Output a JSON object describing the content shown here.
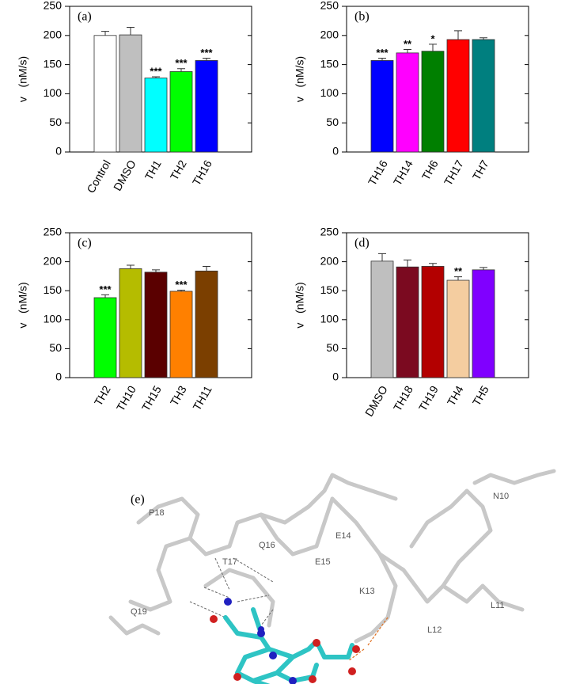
{
  "chart_data": [
    {
      "type": "bar",
      "title": "(a)",
      "ylabel": "v   (nM/s)",
      "categories": [
        "Control",
        "DMSO",
        "TH1",
        "TH2",
        "TH16"
      ],
      "values": [
        200,
        201,
        127,
        138,
        157
      ],
      "errors": [
        7,
        13,
        2,
        5,
        4
      ],
      "significance": [
        null,
        null,
        "***",
        "***",
        "***"
      ],
      "colors": [
        "#ffffff",
        "#bfbfbf",
        "#00ffff",
        "#00ff00",
        "#0000ff"
      ],
      "ylim": [
        0,
        250
      ],
      "yticks": [
        0,
        50,
        100,
        150,
        200,
        250
      ]
    },
    {
      "type": "bar",
      "title": "(b)",
      "ylabel": "v   (nM/s)",
      "categories": [
        "TH16",
        "TH14",
        "TH6",
        "TH17",
        "TH7"
      ],
      "values": [
        157,
        170,
        173,
        193,
        193
      ],
      "errors": [
        4,
        6,
        12,
        15,
        3
      ],
      "significance": [
        "***",
        "**",
        "*",
        null,
        null
      ],
      "colors": [
        "#0000ff",
        "#ff00ff",
        "#007f00",
        "#ff0000",
        "#007f7f"
      ],
      "ylim": [
        0,
        250
      ],
      "yticks": [
        0,
        50,
        100,
        150,
        200,
        250
      ]
    },
    {
      "type": "bar",
      "title": "(c)",
      "ylabel": "v   (nM/s)",
      "categories": [
        "TH2",
        "TH10",
        "TH15",
        "TH3",
        "TH11"
      ],
      "values": [
        138,
        188,
        182,
        149,
        184
      ],
      "errors": [
        5,
        6,
        4,
        2,
        8
      ],
      "significance": [
        "***",
        null,
        null,
        "***",
        null
      ],
      "colors": [
        "#00ff00",
        "#b5bc00",
        "#5a0000",
        "#ff8000",
        "#7b3f00"
      ],
      "ylim": [
        0,
        250
      ],
      "yticks": [
        0,
        50,
        100,
        150,
        200,
        250
      ]
    },
    {
      "type": "bar",
      "title": "(d)",
      "ylabel": "v   (nM/s)",
      "categories": [
        "DMSO",
        "TH18",
        "TH19",
        "TH4",
        "TH5"
      ],
      "values": [
        201,
        191,
        192,
        168,
        186
      ],
      "errors": [
        13,
        12,
        5,
        6,
        4
      ],
      "significance": [
        null,
        null,
        null,
        "**",
        null
      ],
      "colors": [
        "#bfbfbf",
        "#7b0a20",
        "#b30000",
        "#f4cda0",
        "#8000ff"
      ],
      "ylim": [
        0,
        250
      ],
      "yticks": [
        0,
        50,
        100,
        150,
        200,
        250
      ]
    }
  ],
  "panel_e": {
    "label": "(e)",
    "residues": [
      "P18",
      "T17",
      "Q16",
      "E15",
      "E14",
      "K13",
      "N10",
      "L11",
      "L12",
      "Q19"
    ]
  }
}
